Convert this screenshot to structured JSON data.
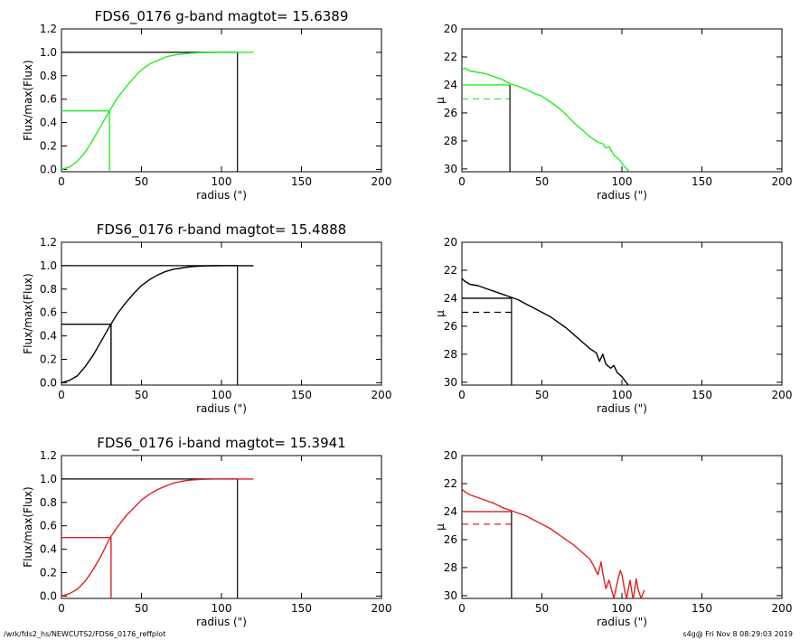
{
  "footer": {
    "left": "/wrk/fds2_hs/NEWCUTS2/FDS6_0176_reffplot",
    "right": "s4g@  Fri Nov  8 08:29:03 2019"
  },
  "colors": {
    "g": "#22ee22",
    "r": "#000000",
    "i": "#dd2222",
    "axis": "#000000"
  },
  "chart_data": [
    {
      "type": "line",
      "panel": "g-growth",
      "title": "FDS6_0176 g-band  magtot=     15.6389",
      "xlabel": "radius (\")",
      "ylabel": "Flux/max(Flux)",
      "xlim": [
        0,
        200
      ],
      "ylim": [
        -0.02,
        1.2
      ],
      "xticks": [
        "0",
        "50",
        "100",
        "150",
        "200"
      ],
      "yticks": [
        "0.0",
        "0.2",
        "0.4",
        "0.6",
        "0.8",
        "1.0",
        "1.2"
      ],
      "series": [
        {
          "color": "#22ee22",
          "x": [
            0,
            5,
            10,
            15,
            20,
            25,
            30,
            35,
            40,
            45,
            50,
            55,
            60,
            65,
            70,
            75,
            80,
            85,
            90,
            95,
            100,
            105,
            110,
            115,
            120
          ],
          "y": [
            0,
            0.02,
            0.07,
            0.15,
            0.26,
            0.38,
            0.5,
            0.61,
            0.7,
            0.78,
            0.85,
            0.9,
            0.93,
            0.96,
            0.975,
            0.985,
            0.992,
            0.996,
            0.998,
            0.999,
            1.0,
            1.0,
            1.0,
            1.0,
            1.0
          ]
        }
      ],
      "reference_lines": {
        "half_radius": 30,
        "half_level": 0.5,
        "total_radius": 110,
        "total_level": 1.0
      }
    },
    {
      "type": "line",
      "panel": "g-profile",
      "xlabel": "radius (\")",
      "ylabel": "μ",
      "xlim": [
        0,
        200
      ],
      "ylim": [
        30.2,
        20
      ],
      "inverted_y": true,
      "xticks": [
        "0",
        "50",
        "100",
        "150",
        "200"
      ],
      "yticks": [
        "20",
        "22",
        "24",
        "26",
        "28",
        "30"
      ],
      "series": [
        {
          "color": "#22ee22",
          "x": [
            0,
            2,
            5,
            10,
            15,
            20,
            25,
            30,
            35,
            40,
            45,
            50,
            55,
            60,
            65,
            70,
            75,
            80,
            85,
            88,
            90,
            92,
            95,
            98,
            100,
            103,
            105
          ],
          "y": [
            22.9,
            22.8,
            23.0,
            23.1,
            23.2,
            23.4,
            23.6,
            23.9,
            24.1,
            24.3,
            24.6,
            24.8,
            25.2,
            25.6,
            26.1,
            26.7,
            27.2,
            27.7,
            28.1,
            28.2,
            28.5,
            28.4,
            29.0,
            29.3,
            29.6,
            30.0,
            30.2
          ]
        }
      ],
      "reference_lines": {
        "solid_level": 24.0,
        "dashed_level": 25.0,
        "radius": 30
      }
    },
    {
      "type": "line",
      "panel": "r-growth",
      "title": "FDS6_0176 r-band  magtot=     15.4888",
      "xlabel": "radius (\")",
      "ylabel": "Flux/max(Flux)",
      "xlim": [
        0,
        200
      ],
      "ylim": [
        -0.02,
        1.2
      ],
      "xticks": [
        "0",
        "50",
        "100",
        "150",
        "200"
      ],
      "yticks": [
        "0.0",
        "0.2",
        "0.4",
        "0.6",
        "0.8",
        "1.0",
        "1.2"
      ],
      "series": [
        {
          "color": "#000000",
          "x": [
            0,
            5,
            10,
            15,
            20,
            25,
            30,
            35,
            40,
            45,
            50,
            55,
            60,
            65,
            70,
            75,
            80,
            85,
            90,
            95,
            100,
            105,
            110,
            115,
            120
          ],
          "y": [
            0,
            0.02,
            0.06,
            0.14,
            0.24,
            0.36,
            0.48,
            0.59,
            0.68,
            0.76,
            0.83,
            0.88,
            0.92,
            0.95,
            0.97,
            0.98,
            0.99,
            0.995,
            0.998,
            0.999,
            1.0,
            1.0,
            1.0,
            1.0,
            1.0
          ]
        }
      ],
      "reference_lines": {
        "half_radius": 31,
        "half_level": 0.5,
        "total_radius": 110,
        "total_level": 1.0
      }
    },
    {
      "type": "line",
      "panel": "r-profile",
      "xlabel": "radius (\")",
      "ylabel": "μ",
      "xlim": [
        0,
        200
      ],
      "ylim": [
        30.2,
        20
      ],
      "inverted_y": true,
      "xticks": [
        "0",
        "50",
        "100",
        "150",
        "200"
      ],
      "yticks": [
        "20",
        "22",
        "24",
        "26",
        "28",
        "30"
      ],
      "series": [
        {
          "color": "#000000",
          "x": [
            0,
            2,
            5,
            10,
            15,
            20,
            25,
            30,
            35,
            40,
            45,
            50,
            55,
            60,
            65,
            70,
            75,
            80,
            84,
            86,
            88,
            90,
            93,
            95,
            97,
            100,
            102,
            104,
            106
          ],
          "y": [
            22.6,
            22.8,
            23.0,
            23.1,
            23.3,
            23.5,
            23.7,
            23.9,
            24.1,
            24.4,
            24.7,
            25.0,
            25.3,
            25.7,
            26.1,
            26.6,
            27.1,
            27.6,
            27.9,
            28.5,
            28.0,
            28.7,
            29.0,
            28.8,
            29.3,
            29.6,
            29.9,
            30.2,
            30.3
          ]
        }
      ],
      "reference_lines": {
        "solid_level": 24.0,
        "dashed_level": 25.0,
        "radius": 31
      }
    },
    {
      "type": "line",
      "panel": "i-growth",
      "title": "FDS6_0176 i-band  magtot=     15.3941",
      "xlabel": "radius (\")",
      "ylabel": "Flux/max(Flux)",
      "xlim": [
        0,
        200
      ],
      "ylim": [
        -0.02,
        1.2
      ],
      "xticks": [
        "0",
        "50",
        "100",
        "150",
        "200"
      ],
      "yticks": [
        "0.0",
        "0.2",
        "0.4",
        "0.6",
        "0.8",
        "1.0",
        "1.2"
      ],
      "series": [
        {
          "color": "#dd2222",
          "x": [
            0,
            5,
            10,
            15,
            20,
            25,
            30,
            35,
            40,
            45,
            50,
            55,
            60,
            65,
            70,
            75,
            80,
            85,
            90,
            95,
            100,
            105,
            110,
            115,
            120
          ],
          "y": [
            0,
            0.02,
            0.06,
            0.13,
            0.23,
            0.35,
            0.49,
            0.59,
            0.68,
            0.75,
            0.82,
            0.87,
            0.91,
            0.94,
            0.965,
            0.98,
            0.99,
            0.995,
            0.998,
            1.0,
            1.0,
            1.0,
            1.0,
            1.0,
            1.0
          ]
        }
      ],
      "reference_lines": {
        "half_radius": 31,
        "half_level": 0.5,
        "total_radius": 110,
        "total_level": 1.0
      }
    },
    {
      "type": "line",
      "panel": "i-profile",
      "xlabel": "radius (\")",
      "ylabel": "μ",
      "xlim": [
        0,
        200
      ],
      "ylim": [
        30.2,
        20
      ],
      "inverted_y": true,
      "xticks": [
        "0",
        "50",
        "100",
        "150",
        "200"
      ],
      "yticks": [
        "20",
        "22",
        "24",
        "26",
        "28",
        "30"
      ],
      "series": [
        {
          "color": "#dd2222",
          "x": [
            0,
            2,
            5,
            10,
            15,
            20,
            25,
            30,
            35,
            40,
            45,
            50,
            55,
            60,
            65,
            70,
            75,
            80,
            82,
            85,
            87,
            88,
            90,
            92,
            95,
            97,
            99,
            100,
            102,
            103,
            105,
            107,
            109,
            110,
            112,
            114
          ],
          "y": [
            22.4,
            22.6,
            22.8,
            23.0,
            23.2,
            23.4,
            23.7,
            23.9,
            24.1,
            24.3,
            24.6,
            24.9,
            25.2,
            25.6,
            26.0,
            26.4,
            26.9,
            27.4,
            27.8,
            28.5,
            27.6,
            28.4,
            29.5,
            28.9,
            30.2,
            29.1,
            28.2,
            28.5,
            29.8,
            30.2,
            28.9,
            30.3,
            28.8,
            29.5,
            30.2,
            29.6
          ]
        }
      ],
      "reference_lines": {
        "solid_level": 24.0,
        "dashed_level": 24.9,
        "radius": 31
      }
    }
  ]
}
